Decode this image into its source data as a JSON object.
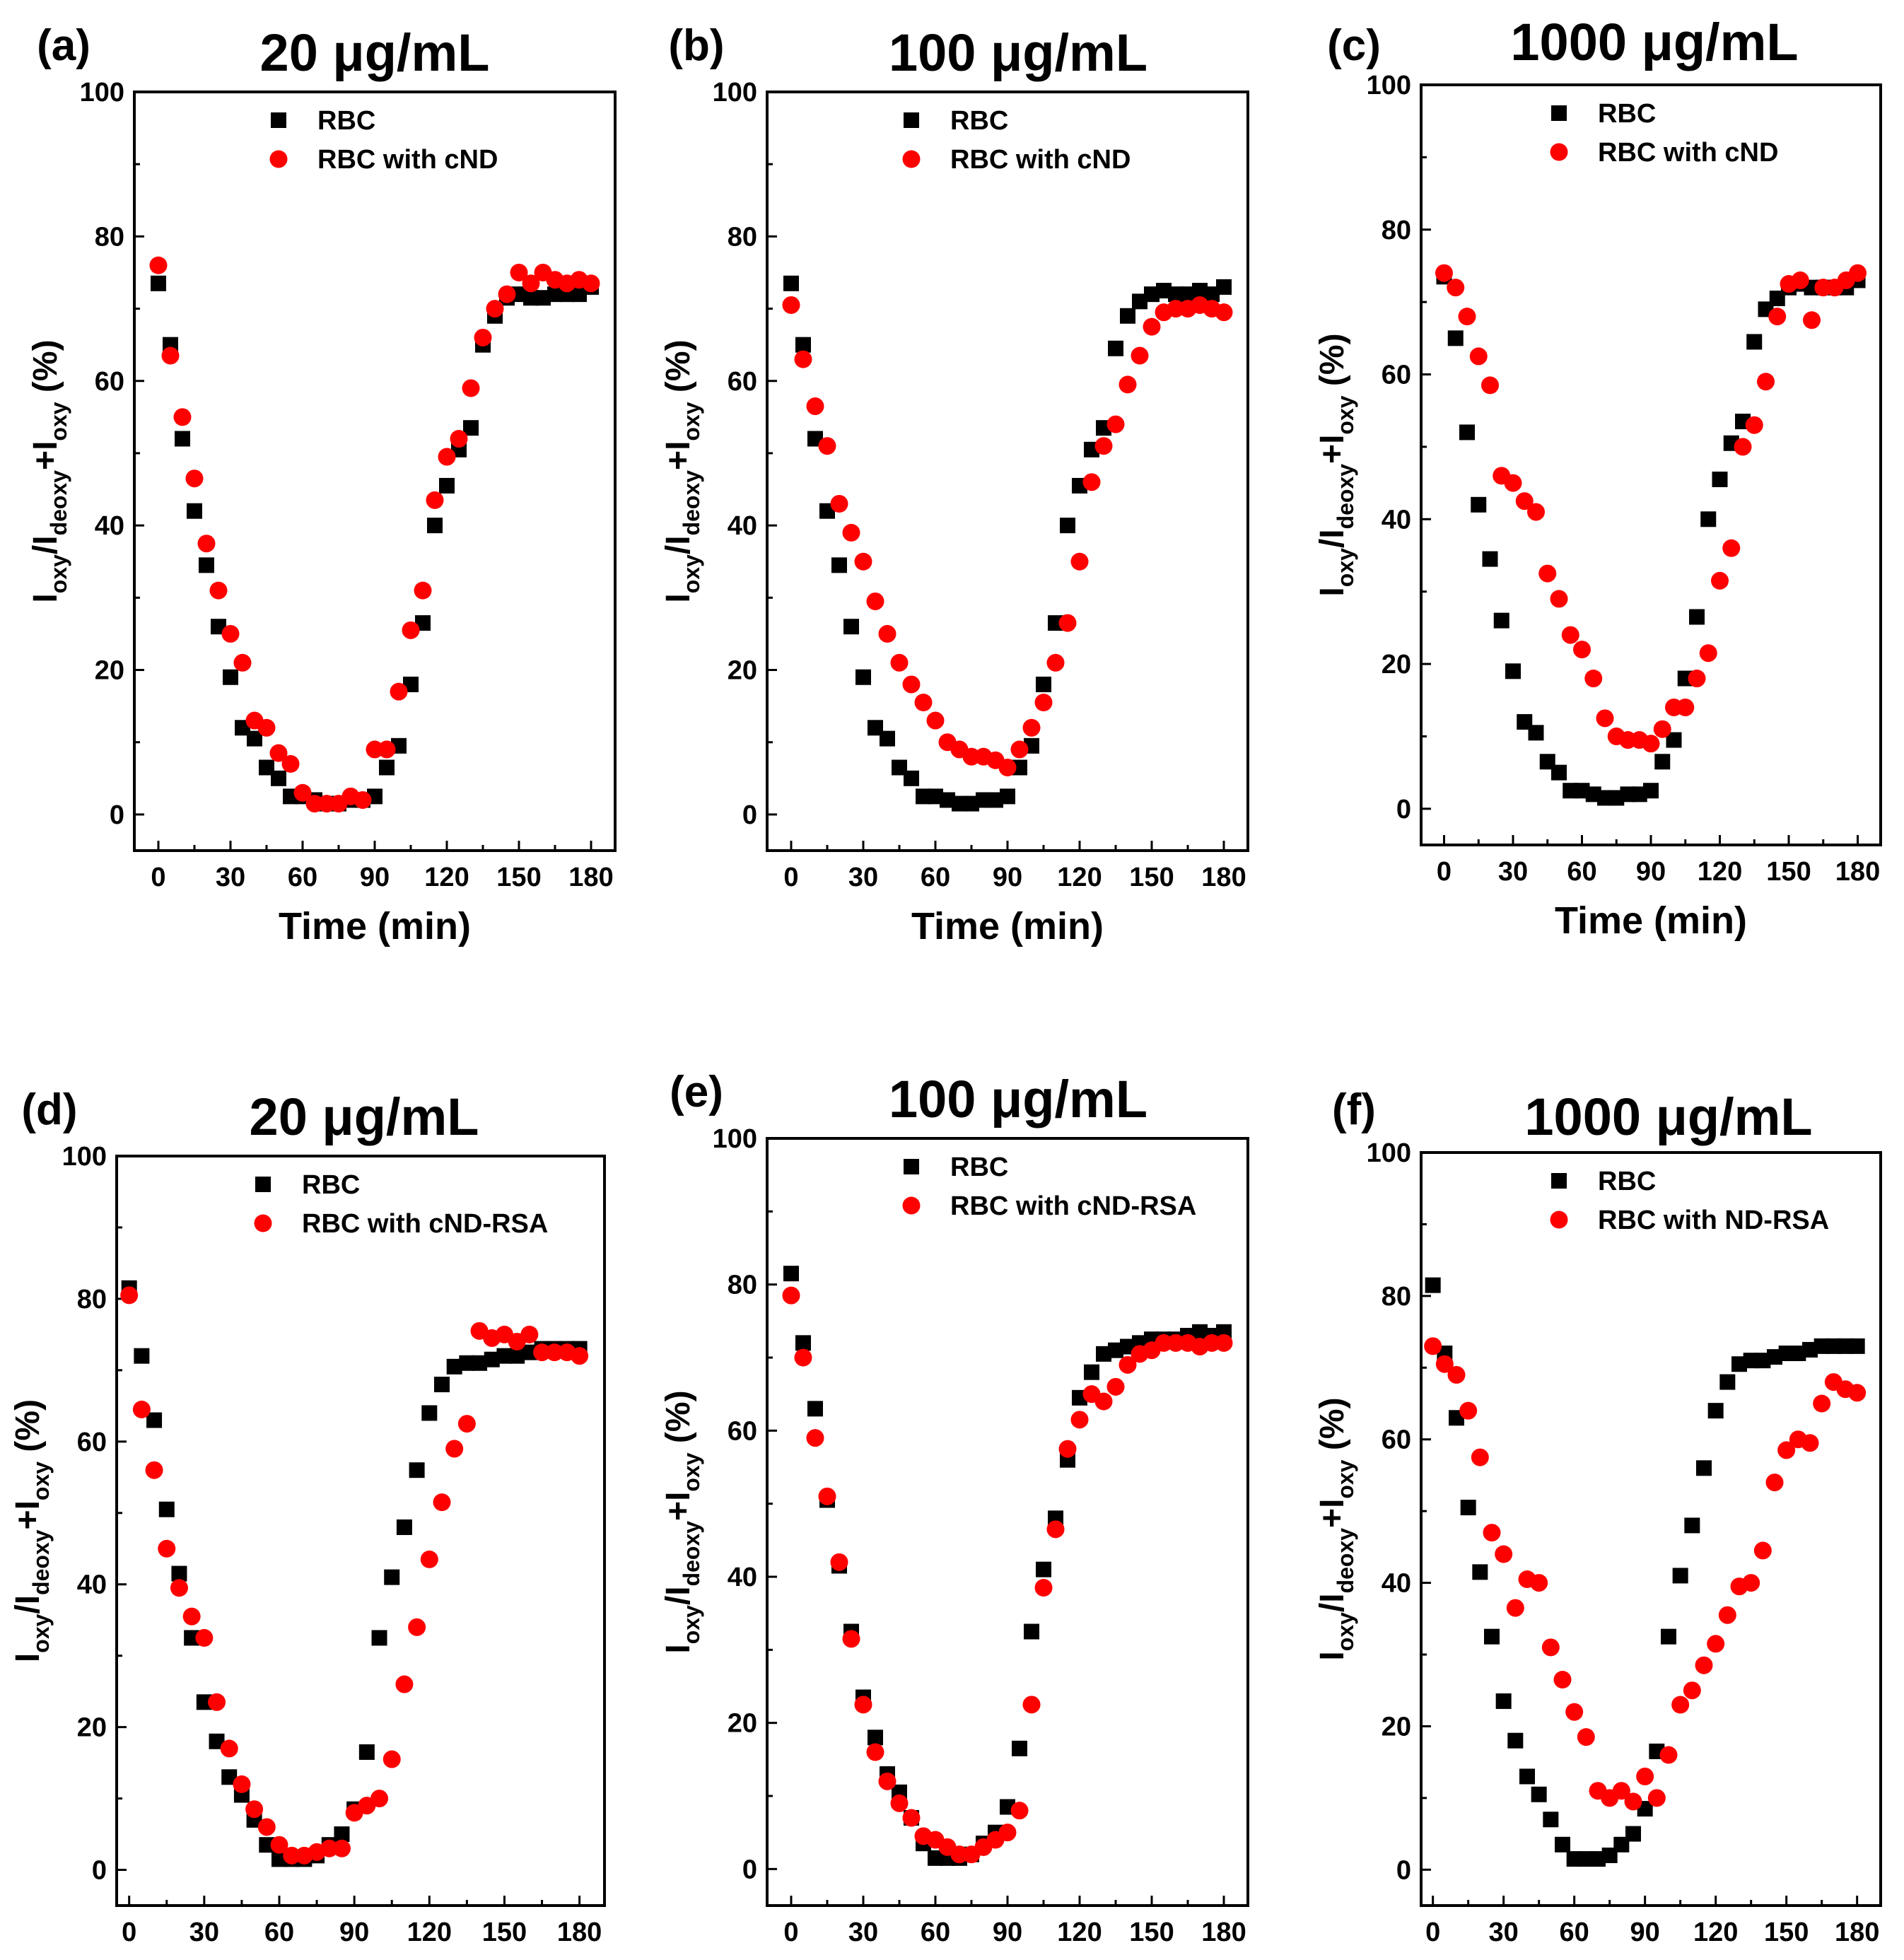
{
  "chart_data": [
    {
      "id": "a",
      "type": "scatter",
      "panel_label": "(a)",
      "title": "20 μg/mL",
      "xlabel": "Time (min)",
      "ylabel": {
        "I1": "I",
        "s1": "oxy",
        "slash": "/I",
        "s2": "deoxy",
        "plus": "+I",
        "s3": "oxy",
        "unit": " (%)"
      },
      "xlim": [
        -10,
        190
      ],
      "ylim": [
        -5,
        100
      ],
      "xticks": [
        "0",
        "30",
        "60",
        "90",
        "120",
        "150",
        "180"
      ],
      "yticks": [
        "0",
        "20",
        "40",
        "60",
        "80",
        "100"
      ],
      "legend_position": "top-right",
      "x": [
        0,
        5,
        10,
        15,
        20,
        25,
        30,
        35,
        40,
        45,
        50,
        55,
        60,
        65,
        70,
        75,
        80,
        85,
        90,
        95,
        100,
        105,
        110,
        115,
        120,
        125,
        130,
        135,
        140,
        145,
        150,
        155,
        160,
        165,
        170,
        175,
        180
      ],
      "series": [
        {
          "name": "RBC",
          "color": "#000000",
          "marker": "square",
          "values": [
            73.5,
            65,
            52,
            42,
            34.5,
            26,
            19,
            12,
            10.5,
            6.5,
            5,
            2.5,
            2.5,
            2,
            1.5,
            1.5,
            2,
            2,
            2.5,
            6.5,
            9.5,
            18,
            26.5,
            40,
            45.5,
            50.5,
            53.5,
            65,
            69,
            71.5,
            72,
            71.5,
            71.5,
            72,
            72,
            72,
            73
          ]
        },
        {
          "name": "RBC with cND",
          "color": "#ff0000",
          "marker": "circle",
          "values": [
            76,
            63.5,
            55,
            46.5,
            37.5,
            31,
            25,
            21,
            13,
            12,
            8.5,
            7,
            3,
            1.5,
            1.5,
            1.5,
            2.5,
            2,
            9,
            9,
            17,
            25.5,
            31,
            43.5,
            49.5,
            52,
            59,
            66,
            70,
            72,
            75,
            73.5,
            75,
            74,
            73.5,
            74,
            73.5
          ]
        }
      ]
    },
    {
      "id": "b",
      "type": "scatter",
      "panel_label": "(b)",
      "title": "100 μg/mL",
      "xlabel": "Time (min)",
      "ylabel": {
        "I1": "I",
        "s1": "oxy",
        "slash": "/I",
        "s2": "deoxy",
        "plus": "+I",
        "s3": "oxy",
        "unit": " (%)"
      },
      "xlim": [
        -10,
        190
      ],
      "ylim": [
        -5,
        100
      ],
      "xticks": [
        "0",
        "30",
        "60",
        "90",
        "120",
        "150",
        "180"
      ],
      "yticks": [
        "0",
        "20",
        "40",
        "60",
        "80",
        "100"
      ],
      "legend_position": "top-right",
      "x": [
        0,
        5,
        10,
        15,
        20,
        25,
        30,
        35,
        40,
        45,
        50,
        55,
        60,
        65,
        70,
        75,
        80,
        85,
        90,
        95,
        100,
        105,
        110,
        115,
        120,
        125,
        130,
        135,
        140,
        145,
        150,
        155,
        160,
        165,
        170,
        175,
        180
      ],
      "series": [
        {
          "name": "RBC",
          "color": "#000000",
          "marker": "square",
          "values": [
            73.5,
            65,
            52,
            42,
            34.5,
            26,
            19,
            12,
            10.5,
            6.5,
            5,
            2.5,
            2.5,
            2,
            1.5,
            1.5,
            2,
            2,
            2.5,
            6.5,
            9.5,
            18,
            26.5,
            40,
            45.5,
            50.5,
            53.5,
            64.5,
            69,
            71,
            72,
            72.5,
            72,
            72,
            72.5,
            72,
            73
          ]
        },
        {
          "name": "RBC with cND",
          "color": "#ff0000",
          "marker": "circle",
          "values": [
            70.5,
            63,
            56.5,
            51,
            43,
            39,
            35,
            29.5,
            25,
            21,
            18,
            15.5,
            13,
            10,
            9,
            8,
            8,
            7.5,
            6.5,
            9,
            12,
            15.5,
            21,
            26.5,
            35,
            46,
            51,
            54,
            59.5,
            63.5,
            67.5,
            69.5,
            70,
            70,
            70.5,
            70,
            69.5
          ]
        }
      ]
    },
    {
      "id": "c",
      "type": "scatter",
      "panel_label": "(c)",
      "title": "1000 μg/mL",
      "xlabel": "Time (min)",
      "ylabel": {
        "I1": "I",
        "s1": "oxy",
        "slash": "/I",
        "s2": "deoxy",
        "plus": "+I",
        "s3": "oxy",
        "unit": " (%)"
      },
      "xlim": [
        -10,
        190
      ],
      "ylim": [
        -5,
        100
      ],
      "xticks": [
        "0",
        "30",
        "60",
        "90",
        "120",
        "150",
        "180"
      ],
      "yticks": [
        "0",
        "20",
        "40",
        "60",
        "80",
        "100"
      ],
      "legend_position": "top-right",
      "x": [
        0,
        5,
        10,
        15,
        20,
        25,
        30,
        35,
        40,
        45,
        50,
        55,
        60,
        65,
        70,
        75,
        80,
        85,
        90,
        95,
        100,
        105,
        110,
        115,
        120,
        125,
        130,
        135,
        140,
        145,
        150,
        155,
        160,
        165,
        170,
        175,
        180
      ],
      "series": [
        {
          "name": "RBC",
          "color": "#000000",
          "marker": "square",
          "values": [
            73.5,
            65,
            52,
            42,
            34.5,
            26,
            19,
            12,
            10.5,
            6.5,
            5,
            2.5,
            2.5,
            2,
            1.5,
            1.5,
            2,
            2,
            2.5,
            6.5,
            9.5,
            18,
            26.5,
            40,
            45.5,
            50.5,
            53.5,
            64.5,
            69,
            70.5,
            72,
            72.5,
            72,
            72,
            72,
            72,
            73
          ]
        },
        {
          "name": "RBC with cND",
          "color": "#ff0000",
          "marker": "circle",
          "values": [
            74,
            72,
            68,
            62.5,
            58.5,
            46,
            45,
            42.5,
            41,
            32.5,
            29,
            24,
            22,
            18,
            12.5,
            10,
            9.5,
            9.5,
            9,
            11,
            14,
            14,
            18,
            21.5,
            31.5,
            36,
            50,
            53,
            59,
            68,
            72.5,
            73,
            67.5,
            72,
            72,
            73,
            74
          ]
        }
      ]
    },
    {
      "id": "d",
      "type": "scatter",
      "panel_label": "(d)",
      "title": "20 μg/mL",
      "xlabel": "Time (min)",
      "ylabel": {
        "I1": "I",
        "s1": "oxy",
        "slash": "/I",
        "s2": "deoxy",
        "plus": "+I",
        "s3": "oxy",
        "unit": " (%)"
      },
      "xlim": [
        -5,
        190
      ],
      "ylim": [
        -5,
        100
      ],
      "xticks": [
        "0",
        "30",
        "60",
        "90",
        "120",
        "150",
        "180"
      ],
      "yticks": [
        "0",
        "20",
        "40",
        "60",
        "80",
        "100"
      ],
      "legend_position": "top-right",
      "x": [
        0,
        5,
        10,
        15,
        20,
        25,
        30,
        35,
        40,
        45,
        50,
        55,
        60,
        65,
        70,
        75,
        80,
        85,
        90,
        95,
        100,
        105,
        110,
        115,
        120,
        125,
        130,
        135,
        140,
        145,
        150,
        155,
        160,
        165,
        170,
        175,
        180
      ],
      "series": [
        {
          "name": "RBC",
          "color": "#000000",
          "marker": "square",
          "values": [
            81.5,
            72,
            63,
            50.5,
            41.5,
            32.5,
            23.5,
            18,
            13,
            10.5,
            7,
            3.5,
            1.5,
            1.5,
            1.5,
            2,
            3.5,
            5,
            8.5,
            16.5,
            32.5,
            41,
            48,
            56,
            64,
            68,
            70.5,
            71,
            71,
            71.5,
            72,
            72,
            72.5,
            73,
            73,
            73,
            73
          ]
        },
        {
          "name": "RBC with cND-RSA",
          "color": "#ff0000",
          "marker": "circle",
          "values": [
            80.5,
            64.5,
            56,
            45,
            39.5,
            35.5,
            32.5,
            23.5,
            17,
            12,
            8.5,
            6,
            3.5,
            2,
            2,
            2.5,
            3,
            3,
            8,
            9,
            10,
            15.5,
            26,
            34,
            43.5,
            51.5,
            59,
            62.5,
            75.5,
            74.5,
            75,
            74,
            75,
            72.5,
            72.5,
            72.5,
            72
          ]
        }
      ]
    },
    {
      "id": "e",
      "type": "scatter",
      "panel_label": "(e)",
      "title": "100 μg/mL",
      "xlabel": "Time (min)",
      "ylabel": {
        "I1": "I",
        "s1": "oxy",
        "slash": "/I",
        "s2": "deoxy",
        "plus": "+I",
        "s3": "oxy",
        "unit": " (%)"
      },
      "xlim": [
        -10,
        190
      ],
      "ylim": [
        -5,
        100
      ],
      "xticks": [
        "0",
        "30",
        "60",
        "90",
        "120",
        "150",
        "180"
      ],
      "yticks": [
        "0",
        "20",
        "40",
        "60",
        "80",
        "100"
      ],
      "legend_position": "top-right",
      "x": [
        0,
        5,
        10,
        15,
        20,
        25,
        30,
        35,
        40,
        45,
        50,
        55,
        60,
        65,
        70,
        75,
        80,
        85,
        90,
        95,
        100,
        105,
        110,
        115,
        120,
        125,
        130,
        135,
        140,
        145,
        150,
        155,
        160,
        165,
        170,
        175,
        180
      ],
      "series": [
        {
          "name": "RBC",
          "color": "#000000",
          "marker": "square",
          "values": [
            81.5,
            72,
            63,
            50.5,
            41.5,
            32.5,
            23.5,
            18,
            13,
            10.5,
            7,
            3.5,
            1.5,
            1.5,
            1.5,
            2,
            3.5,
            5,
            8.5,
            16.5,
            32.5,
            41,
            48,
            56,
            64.5,
            68,
            70.5,
            71,
            71.5,
            72,
            72.5,
            72.5,
            72.5,
            73,
            73.5,
            73,
            73.5
          ]
        },
        {
          "name": "RBC with cND-RSA",
          "color": "#ff0000",
          "marker": "circle",
          "values": [
            78.5,
            70,
            59,
            51,
            42,
            31.5,
            22.5,
            16,
            12,
            9,
            7,
            4.5,
            4,
            3,
            2,
            2,
            3,
            4,
            5,
            8,
            22.5,
            38.5,
            46.5,
            57.5,
            61.5,
            65,
            64,
            66,
            69,
            70.5,
            71,
            72,
            72,
            72,
            71.5,
            72,
            72
          ]
        }
      ]
    },
    {
      "id": "f",
      "type": "scatter",
      "panel_label": "(f)",
      "title": "1000 μg/mL",
      "xlabel": "Time (min)",
      "ylabel": {
        "I1": "I",
        "s1": "oxy",
        "slash": "/I",
        "s2": "deoxy",
        "plus": "+I",
        "s3": "oxy",
        "unit": " (%)"
      },
      "xlim": [
        -5,
        190
      ],
      "ylim": [
        -5,
        100
      ],
      "xticks": [
        "0",
        "30",
        "60",
        "90",
        "120",
        "150",
        "180"
      ],
      "yticks": [
        "0",
        "20",
        "40",
        "60",
        "80",
        "100"
      ],
      "legend_position": "top-right",
      "x": [
        0,
        5,
        10,
        15,
        20,
        25,
        30,
        35,
        40,
        45,
        50,
        55,
        60,
        65,
        70,
        75,
        80,
        85,
        90,
        95,
        100,
        105,
        110,
        115,
        120,
        125,
        130,
        135,
        140,
        145,
        150,
        155,
        160,
        165,
        170,
        175,
        180
      ],
      "series": [
        {
          "name": "RBC",
          "color": "#000000",
          "marker": "square",
          "values": [
            81.5,
            72,
            63,
            50.5,
            41.5,
            32.5,
            23.5,
            18,
            13,
            10.5,
            7,
            3.5,
            1.5,
            1.5,
            1.5,
            2,
            3.5,
            5,
            8.5,
            16.5,
            32.5,
            41,
            48,
            56,
            64,
            68,
            70.5,
            71,
            71,
            71.5,
            72,
            72,
            72.5,
            73,
            73,
            73,
            73
          ]
        },
        {
          "name": "RBC with ND-RSA",
          "color": "#ff0000",
          "marker": "circle",
          "values": [
            73,
            70.5,
            69,
            64,
            57.5,
            47,
            44,
            36.5,
            40.5,
            40,
            31,
            26.5,
            22,
            18.5,
            11,
            10,
            11,
            9.5,
            13,
            10,
            16,
            23,
            25,
            28.5,
            31.5,
            35.5,
            39.5,
            40,
            44.5,
            54,
            58.5,
            60,
            59.5,
            65,
            68,
            67,
            66.5
          ]
        }
      ]
    }
  ]
}
